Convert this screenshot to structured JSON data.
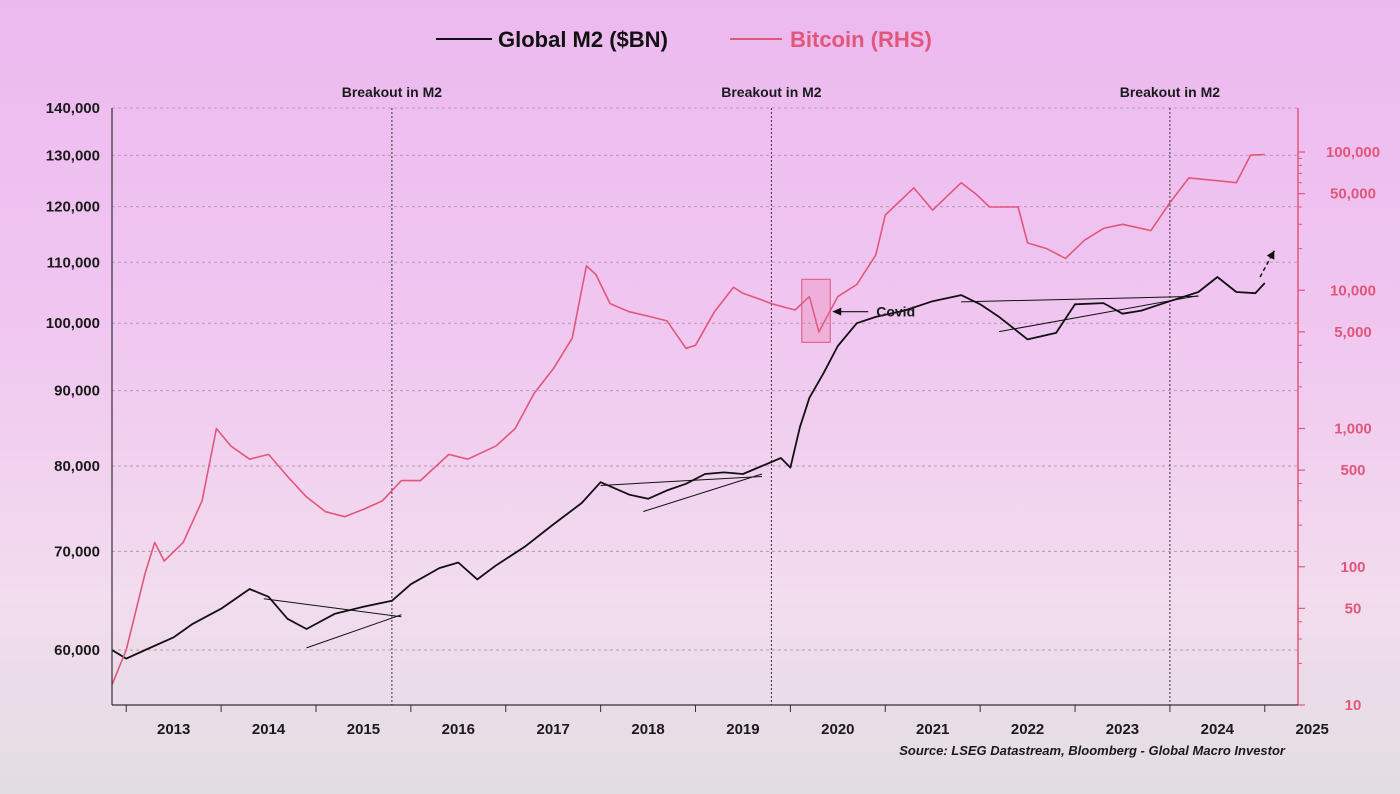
{
  "chart_data": {
    "type": "line",
    "source": "Source: LSEG Datastream, Bloomberg - Global Macro Investor",
    "x_range": [
      2012.85,
      2025.35
    ],
    "x_ticks": [
      "2013",
      "2014",
      "2015",
      "2016",
      "2017",
      "2018",
      "2019",
      "2020",
      "2021",
      "2022",
      "2023",
      "2024",
      "2025"
    ],
    "left_axis": {
      "scale": "log",
      "ylim": [
        56000,
        140000
      ],
      "ticks": [
        60000,
        70000,
        80000,
        90000,
        100000,
        110000,
        120000,
        130000,
        140000
      ],
      "tick_labels": [
        "60,000",
        "70,000",
        "80,000",
        "90,000",
        "100,000",
        "110,000",
        "120,000",
        "130,000",
        "140,000"
      ]
    },
    "right_axis": {
      "scale": "log",
      "ylim": [
        10,
        200000
      ],
      "ticks": [
        10,
        50,
        100,
        500,
        1000,
        5000,
        10000,
        50000,
        100000
      ],
      "tick_labels": [
        "10",
        "50",
        "100",
        "500",
        "1,000",
        "5,000",
        "10,000",
        "50,000",
        "100,000"
      ]
    },
    "series": [
      {
        "name": "Global M2 ($BN)",
        "axis": "left",
        "color": "#111111",
        "x": [
          2012.85,
          2013.0,
          2013.2,
          2013.5,
          2013.7,
          2014.0,
          2014.3,
          2014.5,
          2014.7,
          2014.9,
          2015.2,
          2015.5,
          2015.8,
          2016.0,
          2016.3,
          2016.5,
          2016.7,
          2016.9,
          2017.2,
          2017.5,
          2017.8,
          2018.0,
          2018.1,
          2018.3,
          2018.5,
          2018.7,
          2018.9,
          2019.1,
          2019.3,
          2019.5,
          2019.7,
          2019.9,
          2020.0,
          2020.1,
          2020.2,
          2020.35,
          2020.5,
          2020.7,
          2020.9,
          2021.2,
          2021.5,
          2021.8,
          2022.0,
          2022.2,
          2022.5,
          2022.8,
          2023.0,
          2023.3,
          2023.5,
          2023.7,
          2024.0,
          2024.3,
          2024.5,
          2024.7,
          2024.9,
          2025.0
        ],
        "values": [
          60000,
          59200,
          60000,
          61200,
          62500,
          64000,
          66000,
          65200,
          63000,
          62000,
          63500,
          64200,
          64800,
          66500,
          68200,
          68800,
          67000,
          68500,
          70500,
          73000,
          75500,
          78000,
          77500,
          76500,
          76000,
          77000,
          77800,
          79000,
          79200,
          79000,
          80000,
          81000,
          79800,
          85000,
          89000,
          92500,
          96500,
          100000,
          101000,
          102000,
          103500,
          104500,
          103000,
          101000,
          97500,
          98500,
          103000,
          103200,
          101500,
          102000,
          103500,
          105000,
          107500,
          105000,
          104800,
          106500
        ]
      },
      {
        "name": "Bitcoin (RHS)",
        "axis": "right",
        "color": "#e0577a",
        "x": [
          2012.85,
          2013.0,
          2013.2,
          2013.3,
          2013.4,
          2013.6,
          2013.8,
          2013.95,
          2014.1,
          2014.3,
          2014.5,
          2014.7,
          2014.9,
          2015.1,
          2015.3,
          2015.5,
          2015.7,
          2015.9,
          2016.1,
          2016.4,
          2016.6,
          2016.9,
          2017.1,
          2017.3,
          2017.5,
          2017.7,
          2017.85,
          2017.95,
          2018.1,
          2018.3,
          2018.5,
          2018.7,
          2018.9,
          2019.0,
          2019.2,
          2019.4,
          2019.5,
          2019.7,
          2019.8,
          2019.95,
          2020.05,
          2020.2,
          2020.3,
          2020.5,
          2020.7,
          2020.9,
          2021.0,
          2021.3,
          2021.5,
          2021.8,
          2021.95,
          2022.1,
          2022.4,
          2022.5,
          2022.7,
          2022.9,
          2023.1,
          2023.3,
          2023.5,
          2023.8,
          2024.0,
          2024.2,
          2024.5,
          2024.7,
          2024.85,
          2025.0
        ],
        "values": [
          14,
          25,
          90,
          150,
          110,
          150,
          300,
          1000,
          750,
          600,
          650,
          450,
          320,
          250,
          230,
          260,
          300,
          420,
          420,
          650,
          600,
          750,
          1000,
          1800,
          2700,
          4500,
          15000,
          13000,
          8000,
          7000,
          6500,
          6000,
          3800,
          4000,
          7000,
          10500,
          9500,
          8500,
          8000,
          7500,
          7200,
          9000,
          5000,
          9000,
          11000,
          18000,
          35000,
          55000,
          38000,
          60000,
          50000,
          40000,
          40000,
          22000,
          20000,
          17000,
          23000,
          28000,
          30000,
          27000,
          43000,
          65000,
          62000,
          60000,
          95000,
          96000
        ]
      }
    ],
    "annotations": {
      "breakout_label": "Breakout in M2",
      "breakout_years": [
        2015.8,
        2019.8,
        2024.0
      ],
      "covid_label": "Covid"
    }
  },
  "legend": {
    "m2_label": "Global M2 ($BN)",
    "btc_label": "Bitcoin (RHS)",
    "m2_color": "#111111",
    "btc_color": "#e0577a"
  },
  "colors": {
    "grid": "#b49bb6",
    "right_axis": "#e0577a"
  }
}
